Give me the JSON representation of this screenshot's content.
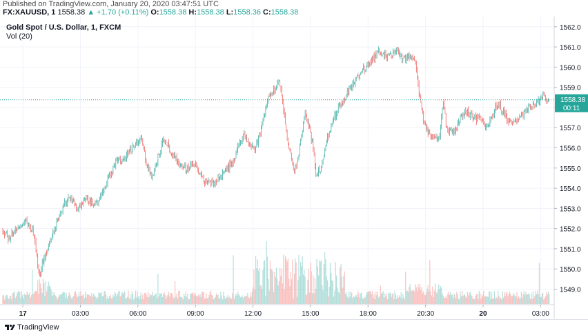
{
  "header": {
    "published": "Published on TradingView.com, January 20, 2020 03:47:51 UTC",
    "symbol": "FX:XAUUSD, 1",
    "last": "1558.38",
    "change": "+1.70 (+0.11%)",
    "o_label": "O:",
    "o_value": "1558.38",
    "h_label": "H:",
    "h_value": "1558.38",
    "l_label": "L:",
    "l_value": "1558.36",
    "c_label": "C:",
    "c_value": "1558.38"
  },
  "legend": {
    "instrument": "Gold Spot / U.S. Dollar, 1, FXCM",
    "volume": "Vol (20)"
  },
  "price_tag": {
    "value": "1558.38",
    "countdown": "00:11"
  },
  "footer": {
    "brand": "TradingView"
  },
  "colors": {
    "up": "#26a69a",
    "down": "#ef5350",
    "last_line": "#26a69a"
  },
  "chart_data": {
    "type": "candlestick",
    "timeframe": "1 minute",
    "y_ticks": [
      1549.0,
      1550.0,
      1551.0,
      1552.0,
      1553.0,
      1554.0,
      1555.0,
      1556.0,
      1557.0,
      1558.0,
      1559.0,
      1560.0,
      1561.0,
      1562.0
    ],
    "ylim": [
      1548.3,
      1562.3
    ],
    "x_ticks": [
      {
        "label": "17",
        "t": 0
      },
      {
        "label": "03:00",
        "t": 1
      },
      {
        "label": "06:00",
        "t": 2
      },
      {
        "label": "09:00",
        "t": 3
      },
      {
        "label": "12:00",
        "t": 4
      },
      {
        "label": "15:00",
        "t": 5
      },
      {
        "label": "18:00",
        "t": 6
      },
      {
        "label": "20:30",
        "t": 7
      },
      {
        "label": "20",
        "t": 8
      },
      {
        "label": "03:00",
        "t": 9
      }
    ],
    "x_range": [
      -0.35,
      9.2
    ],
    "price_path": [
      [
        -0.35,
        1552.0
      ],
      [
        -0.25,
        1551.5
      ],
      [
        -0.1,
        1552.1
      ],
      [
        0.05,
        1552.4
      ],
      [
        0.2,
        1551.8
      ],
      [
        0.28,
        1549.6
      ],
      [
        0.35,
        1550.4
      ],
      [
        0.5,
        1551.6
      ],
      [
        0.65,
        1552.8
      ],
      [
        0.8,
        1553.6
      ],
      [
        0.95,
        1553.0
      ],
      [
        1.1,
        1553.4
      ],
      [
        1.3,
        1553.3
      ],
      [
        1.45,
        1554.2
      ],
      [
        1.6,
        1555.2
      ],
      [
        1.8,
        1555.6
      ],
      [
        1.95,
        1556.2
      ],
      [
        2.05,
        1556.6
      ],
      [
        2.15,
        1555.2
      ],
      [
        2.25,
        1554.5
      ],
      [
        2.35,
        1555.5
      ],
      [
        2.45,
        1556.5
      ],
      [
        2.55,
        1556.0
      ],
      [
        2.7,
        1555.2
      ],
      [
        2.85,
        1555.0
      ],
      [
        3.0,
        1555.2
      ],
      [
        3.1,
        1554.6
      ],
      [
        3.2,
        1554.2
      ],
      [
        3.3,
        1554.3
      ],
      [
        3.45,
        1554.6
      ],
      [
        3.55,
        1555.0
      ],
      [
        3.65,
        1555.3
      ],
      [
        3.75,
        1556.1
      ],
      [
        3.85,
        1556.6
      ],
      [
        3.95,
        1556.0
      ],
      [
        4.05,
        1556.0
      ],
      [
        4.15,
        1557.0
      ],
      [
        4.25,
        1558.4
      ],
      [
        4.35,
        1558.8
      ],
      [
        4.45,
        1559.3
      ],
      [
        4.52,
        1558.3
      ],
      [
        4.58,
        1556.6
      ],
      [
        4.65,
        1555.8
      ],
      [
        4.72,
        1554.8
      ],
      [
        4.8,
        1555.8
      ],
      [
        4.9,
        1557.8
      ],
      [
        4.98,
        1557.0
      ],
      [
        5.05,
        1556.0
      ],
      [
        5.1,
        1554.6
      ],
      [
        5.18,
        1555.0
      ],
      [
        5.28,
        1556.4
      ],
      [
        5.38,
        1557.3
      ],
      [
        5.5,
        1558.0
      ],
      [
        5.62,
        1558.6
      ],
      [
        5.75,
        1559.2
      ],
      [
        5.9,
        1559.8
      ],
      [
        6.05,
        1560.3
      ],
      [
        6.2,
        1560.8
      ],
      [
        6.35,
        1560.5
      ],
      [
        6.5,
        1560.9
      ],
      [
        6.6,
        1560.3
      ],
      [
        6.72,
        1560.6
      ],
      [
        6.82,
        1560.2
      ],
      [
        6.9,
        1558.4
      ],
      [
        6.97,
        1557.3
      ],
      [
        7.05,
        1556.8
      ],
      [
        7.15,
        1556.5
      ],
      [
        7.25,
        1556.6
      ],
      [
        7.3,
        1558.3
      ],
      [
        7.38,
        1556.8
      ],
      [
        7.5,
        1556.7
      ],
      [
        7.6,
        1557.5
      ],
      [
        7.72,
        1557.8
      ],
      [
        7.85,
        1557.5
      ],
      [
        7.95,
        1557.4
      ],
      [
        8.05,
        1557.0
      ],
      [
        8.15,
        1557.6
      ],
      [
        8.25,
        1558.2
      ],
      [
        8.35,
        1557.8
      ],
      [
        8.45,
        1557.3
      ],
      [
        8.55,
        1557.2
      ],
      [
        8.68,
        1557.6
      ],
      [
        8.8,
        1558.0
      ],
      [
        8.92,
        1558.2
      ],
      [
        9.05,
        1558.6
      ],
      [
        9.15,
        1558.38
      ]
    ],
    "last_price": 1558.38,
    "volume_relative_max": 1.0
  }
}
